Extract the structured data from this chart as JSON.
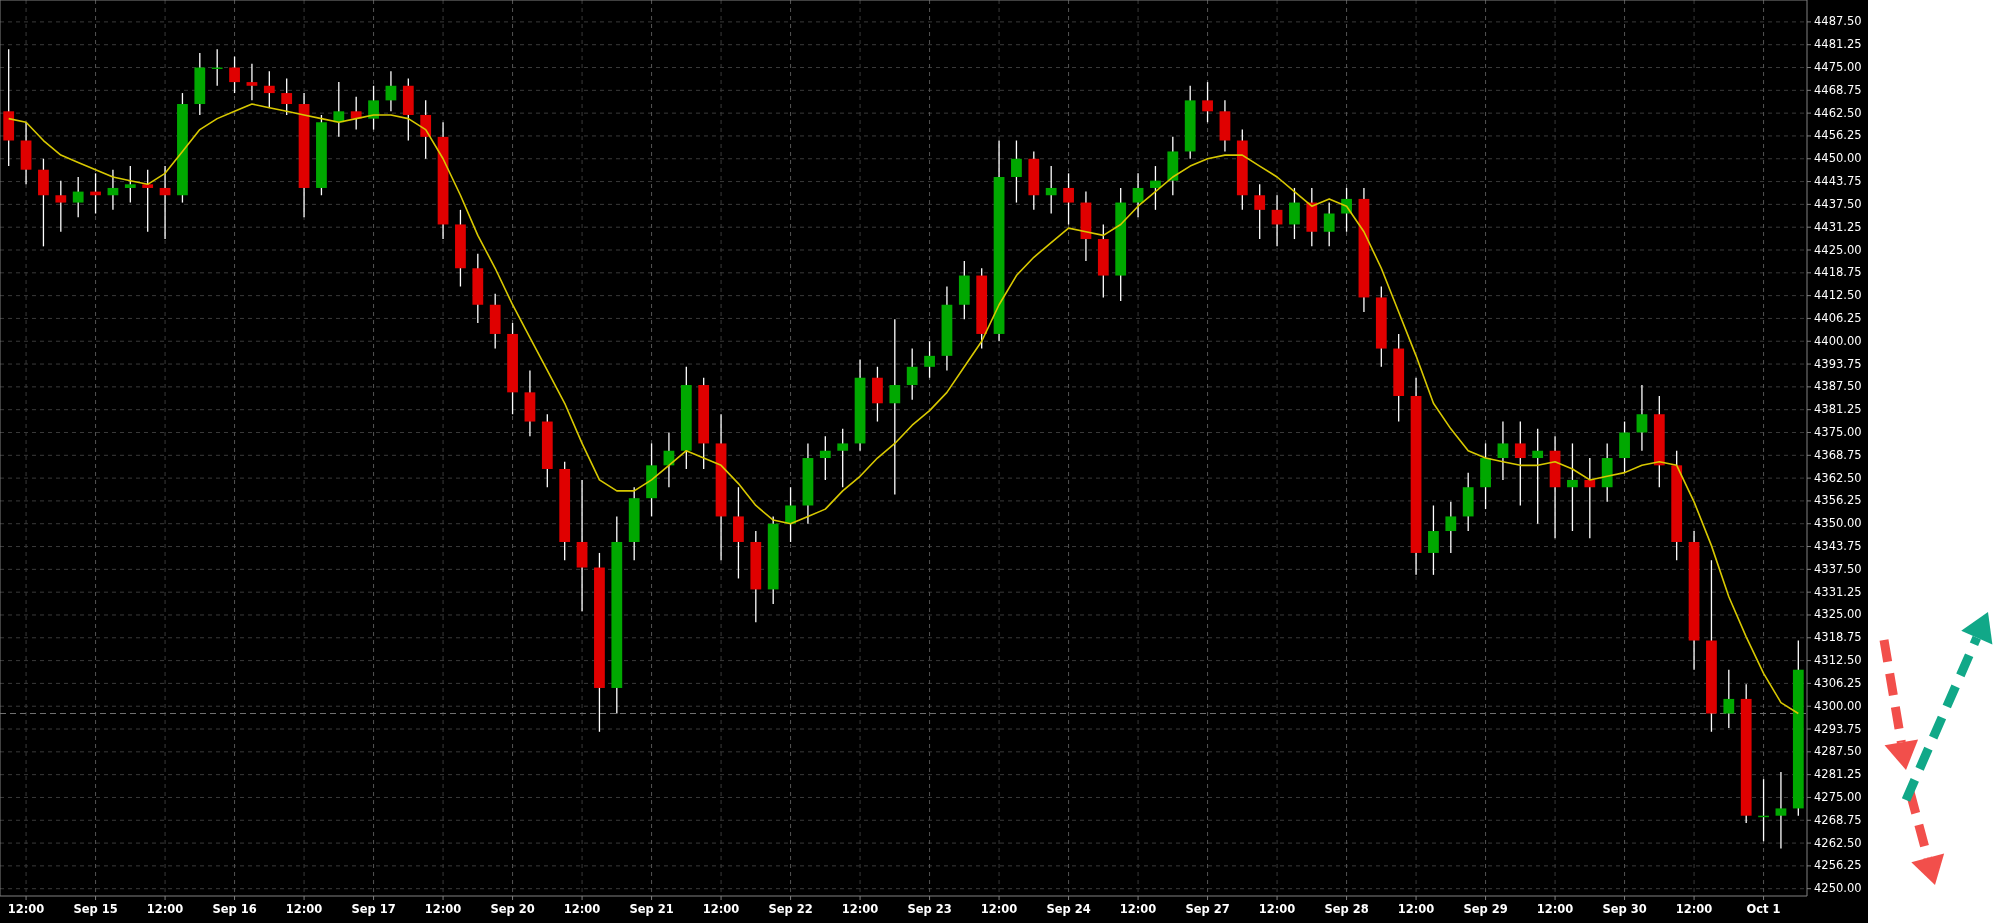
{
  "chart_data": {
    "type": "candlestick",
    "categories": [
      null,
      "12:00",
      null,
      null,
      null,
      "Sep 15",
      null,
      null,
      null,
      "12:00",
      null,
      null,
      null,
      "Sep 16",
      null,
      null,
      null,
      "12:00",
      null,
      null,
      null,
      "Sep 17",
      null,
      null,
      null,
      "12:00",
      null,
      null,
      null,
      "Sep 20",
      null,
      null,
      null,
      "12:00",
      null,
      null,
      null,
      "Sep 21",
      null,
      null,
      null,
      "12:00",
      null,
      null,
      null,
      "Sep 22",
      null,
      null,
      null,
      "12:00",
      null,
      null,
      null,
      "Sep 23",
      null,
      null,
      null,
      "12:00",
      null,
      null,
      null,
      "Sep 24",
      null,
      null,
      null,
      "12:00",
      null,
      null,
      null,
      "Sep 27",
      null,
      null,
      null,
      "12:00",
      null,
      null,
      null,
      "Sep 28",
      null,
      null,
      null,
      "12:00",
      null,
      null,
      null,
      "Sep 29",
      null,
      null,
      null,
      "12:00",
      null,
      null,
      null,
      "Sep 30",
      null,
      null,
      null,
      "12:00",
      null,
      null,
      null,
      "Oct 1",
      null,
      null
    ],
    "ohlc": [
      [
        4463,
        4480,
        4448,
        4455
      ],
      [
        4455,
        4460,
        4443,
        4447
      ],
      [
        4447,
        4450,
        4426,
        4440
      ],
      [
        4440,
        4444,
        4430,
        4438
      ],
      [
        4438,
        4445,
        4434,
        4441
      ],
      [
        4441,
        4446,
        4435,
        4440
      ],
      [
        4440,
        4447,
        4436,
        4442
      ],
      [
        4442,
        4448,
        4438,
        4443
      ],
      [
        4443,
        4447,
        4430,
        4442
      ],
      [
        4442,
        4448,
        4428,
        4440
      ],
      [
        4440,
        4468,
        4438,
        4465
      ],
      [
        4465,
        4479,
        4462,
        4475
      ],
      [
        4475,
        4480,
        4470,
        4475
      ],
      [
        4475,
        4478,
        4468,
        4471
      ],
      [
        4471,
        4476,
        4466,
        4470
      ],
      [
        4470,
        4474,
        4464,
        4468
      ],
      [
        4468,
        4472,
        4462,
        4465
      ],
      [
        4465,
        4468,
        4434,
        4442
      ],
      [
        4442,
        4462,
        4440,
        4460
      ],
      [
        4460,
        4471,
        4456,
        4463
      ],
      [
        4463,
        4467,
        4458,
        4461
      ],
      [
        4461,
        4470,
        4458,
        4466
      ],
      [
        4466,
        4474,
        4463,
        4470
      ],
      [
        4470,
        4472,
        4455,
        4462
      ],
      [
        4462,
        4466,
        4450,
        4456
      ],
      [
        4456,
        4460,
        4428,
        4432
      ],
      [
        4432,
        4436,
        4415,
        4420
      ],
      [
        4420,
        4424,
        4405,
        4410
      ],
      [
        4410,
        4413,
        4398,
        4402
      ],
      [
        4402,
        4405,
        4380,
        4386
      ],
      [
        4386,
        4392,
        4374,
        4378
      ],
      [
        4378,
        4380,
        4360,
        4365
      ],
      [
        4365,
        4367,
        4340,
        4345
      ],
      [
        4345,
        4362,
        4326,
        4338
      ],
      [
        4338,
        4342,
        4293,
        4305
      ],
      [
        4305,
        4352,
        4298,
        4345
      ],
      [
        4345,
        4360,
        4340,
        4357
      ],
      [
        4357,
        4372,
        4352,
        4366
      ],
      [
        4366,
        4375,
        4360,
        4370
      ],
      [
        4370,
        4393,
        4365,
        4388
      ],
      [
        4388,
        4390,
        4365,
        4372
      ],
      [
        4372,
        4380,
        4340,
        4352
      ],
      [
        4352,
        4360,
        4335,
        4345
      ],
      [
        4345,
        4348,
        4323,
        4332
      ],
      [
        4332,
        4352,
        4328,
        4350
      ],
      [
        4350,
        4360,
        4345,
        4355
      ],
      [
        4355,
        4372,
        4350,
        4368
      ],
      [
        4368,
        4374,
        4362,
        4370
      ],
      [
        4370,
        4376,
        4360,
        4372
      ],
      [
        4372,
        4395,
        4370,
        4390
      ],
      [
        4390,
        4393,
        4378,
        4383
      ],
      [
        4383,
        4406,
        4358,
        4388
      ],
      [
        4388,
        4398,
        4384,
        4393
      ],
      [
        4393,
        4400,
        4390,
        4396
      ],
      [
        4396,
        4415,
        4392,
        4410
      ],
      [
        4410,
        4422,
        4406,
        4418
      ],
      [
        4418,
        4420,
        4398,
        4402
      ],
      [
        4402,
        4455,
        4400,
        4445
      ],
      [
        4445,
        4455,
        4438,
        4450
      ],
      [
        4450,
        4452,
        4436,
        4440
      ],
      [
        4440,
        4448,
        4435,
        4442
      ],
      [
        4442,
        4446,
        4432,
        4438
      ],
      [
        4438,
        4441,
        4422,
        4428
      ],
      [
        4428,
        4432,
        4412,
        4418
      ],
      [
        4418,
        4442,
        4411,
        4438
      ],
      [
        4438,
        4446,
        4434,
        4442
      ],
      [
        4442,
        4448,
        4436,
        4444
      ],
      [
        4444,
        4456,
        4440,
        4452
      ],
      [
        4452,
        4470,
        4450,
        4466
      ],
      [
        4466,
        4471,
        4460,
        4463
      ],
      [
        4463,
        4466,
        4452,
        4455
      ],
      [
        4455,
        4458,
        4436,
        4440
      ],
      [
        4440,
        4443,
        4428,
        4436
      ],
      [
        4436,
        4440,
        4426,
        4432
      ],
      [
        4432,
        4442,
        4428,
        4438
      ],
      [
        4438,
        4442,
        4426,
        4430
      ],
      [
        4430,
        4438,
        4426,
        4435
      ],
      [
        4435,
        4442,
        4430,
        4439
      ],
      [
        4439,
        4442,
        4408,
        4412
      ],
      [
        4412,
        4415,
        4393,
        4398
      ],
      [
        4398,
        4402,
        4378,
        4385
      ],
      [
        4385,
        4390,
        4336,
        4342
      ],
      [
        4342,
        4355,
        4336,
        4348
      ],
      [
        4348,
        4356,
        4342,
        4352
      ],
      [
        4352,
        4364,
        4348,
        4360
      ],
      [
        4360,
        4372,
        4354,
        4368
      ],
      [
        4368,
        4378,
        4362,
        4372
      ],
      [
        4372,
        4378,
        4355,
        4368
      ],
      [
        4368,
        4376,
        4350,
        4370
      ],
      [
        4370,
        4374,
        4346,
        4360
      ],
      [
        4360,
        4372,
        4348,
        4362
      ],
      [
        4362,
        4368,
        4346,
        4360
      ],
      [
        4360,
        4372,
        4356,
        4368
      ],
      [
        4368,
        4378,
        4364,
        4375
      ],
      [
        4375,
        4388,
        4370,
        4380
      ],
      [
        4380,
        4385,
        4360,
        4366
      ],
      [
        4366,
        4370,
        4340,
        4345
      ],
      [
        4345,
        4348,
        4310,
        4318
      ],
      [
        4318,
        4340,
        4293,
        4298
      ],
      [
        4298,
        4310,
        4294,
        4302
      ],
      [
        4302,
        4306,
        4268,
        4270
      ],
      [
        4270,
        4280,
        4263,
        4270
      ],
      [
        4270,
        4282,
        4261,
        4272
      ],
      [
        4272,
        4318,
        4270,
        4310
      ]
    ],
    "series": [
      {
        "type": "line",
        "color": "#d8c800",
        "values": [
          4461,
          4460,
          4455,
          4451,
          4449,
          4447,
          4445,
          4444,
          4443,
          4446,
          4452,
          4458,
          4461,
          4463,
          4465,
          4464,
          4463,
          4462,
          4461,
          4460,
          4461,
          4462,
          4462,
          4461,
          4458,
          4450,
          4440,
          4429,
          4420,
          4410,
          4401,
          4392,
          4383,
          4372,
          4362,
          4359,
          4359,
          4362,
          4366,
          4370,
          4368,
          4366,
          4361,
          4355,
          4351,
          4350,
          4352,
          4354,
          4359,
          4363,
          4368,
          4372,
          4377,
          4381,
          4386,
          4393,
          4400,
          4410,
          4418,
          4423,
          4427,
          4431,
          4430,
          4429,
          4432,
          4437,
          4441,
          4445,
          4448,
          4450,
          4451,
          4451,
          4448,
          4445,
          4441,
          4437,
          4439,
          4437,
          4430,
          4420,
          4408,
          4396,
          4383,
          4376,
          4370,
          4368,
          4367,
          4366,
          4366,
          4367,
          4365,
          4362,
          4363,
          4364,
          4366,
          4367,
          4366,
          4356,
          4344,
          4330,
          4319,
          4309,
          4301,
          4298
        ]
      }
    ],
    "ylim": [
      4248,
      4493.5
    ],
    "yticks": [
      {
        "value": 4250,
        "label": "4250.00"
      },
      {
        "value": 4256.25,
        "label": "4256.25"
      },
      {
        "value": 4262.5,
        "label": "4262.50"
      },
      {
        "value": 4268.75,
        "label": "4268.75"
      },
      {
        "value": 4275,
        "label": "4275.00"
      },
      {
        "value": 4281.25,
        "label": "4281.25"
      },
      {
        "value": 4287.5,
        "label": "4287.50"
      },
      {
        "value": 4293.75,
        "label": "4293.75"
      },
      {
        "value": 4300,
        "label": "4300.00"
      },
      {
        "value": 4306.25,
        "label": "4306.25"
      },
      {
        "value": 4312.5,
        "label": "4312.50"
      },
      {
        "value": 4318.75,
        "label": "4318.75"
      },
      {
        "value": 4325,
        "label": "4325.00"
      },
      {
        "value": 4331.25,
        "label": "4331.25"
      },
      {
        "value": 4337.5,
        "label": "4337.50"
      },
      {
        "value": 4343.75,
        "label": "4343.75"
      },
      {
        "value": 4350,
        "label": "4350.00"
      },
      {
        "value": 4356.25,
        "label": "4356.25"
      },
      {
        "value": 4362.5,
        "label": "4362.50"
      },
      {
        "value": 4368.75,
        "label": "4368.75"
      },
      {
        "value": 4375,
        "label": "4375.00"
      },
      {
        "value": 4381.25,
        "label": "4381.25"
      },
      {
        "value": 4387.5,
        "label": "4387.50"
      },
      {
        "value": 4393.75,
        "label": "4393.75"
      },
      {
        "value": 4400,
        "label": "4400.00"
      },
      {
        "value": 4406.25,
        "label": "4406.25"
      },
      {
        "value": 4412.5,
        "label": "4412.50"
      },
      {
        "value": 4418.75,
        "label": "4418.75"
      },
      {
        "value": 4425,
        "label": "4425.00"
      },
      {
        "value": 4431.25,
        "label": "4431.25"
      },
      {
        "value": 4437.5,
        "label": "4437.50"
      },
      {
        "value": 4443.75,
        "label": "4443.75"
      },
      {
        "value": 4450,
        "label": "4450.00"
      },
      {
        "value": 4456.25,
        "label": "4456.25"
      },
      {
        "value": 4462.5,
        "label": "4462.50"
      },
      {
        "value": 4468.75,
        "label": "4468.75"
      },
      {
        "value": 4475,
        "label": "4475.00"
      },
      {
        "value": 4481.25,
        "label": "4481.25"
      },
      {
        "value": 4487.5,
        "label": "4487.50"
      }
    ],
    "grid": true,
    "ref_lines": [
      {
        "axis": "y",
        "value": 4298,
        "color": "#707070",
        "line_style": "dashed"
      }
    ]
  }
}
